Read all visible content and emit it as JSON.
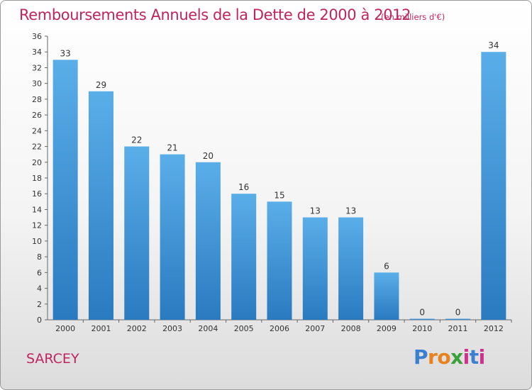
{
  "header": {
    "title": "Remboursements Annuels de la Dette de 2000 à 2012",
    "subtitle": "(en milliers d'€)"
  },
  "footer": {
    "commune": "SARCEY",
    "brand": [
      "P",
      "r",
      "o",
      "x",
      "i",
      "t",
      "i"
    ],
    "brand_colors": [
      "#3a7fd0",
      "#e8821e",
      "#e8821e",
      "#3aa03a",
      "#d42e8c",
      "#3a7fd0",
      "#d42e8c"
    ]
  },
  "chart_data": {
    "type": "bar",
    "title": "Remboursements Annuels de la Dette de 2000 à 2012",
    "subtitle": "(en milliers d'€)",
    "xlabel": "",
    "ylabel": "",
    "categories": [
      "2000",
      "2001",
      "2002",
      "2003",
      "2004",
      "2005",
      "2006",
      "2007",
      "2008",
      "2009",
      "2010",
      "2011",
      "2012"
    ],
    "values": [
      33,
      29,
      22,
      21,
      20,
      16,
      15,
      13,
      13,
      6,
      0,
      0,
      34
    ],
    "ylim": [
      0,
      36
    ],
    "yticks": [
      0,
      2,
      4,
      6,
      8,
      10,
      12,
      14,
      16,
      18,
      20,
      22,
      24,
      26,
      28,
      30,
      32,
      34,
      36
    ],
    "grid": false,
    "bar_color_top": "#5aaee8",
    "bar_color_bottom": "#2a7ac0"
  }
}
